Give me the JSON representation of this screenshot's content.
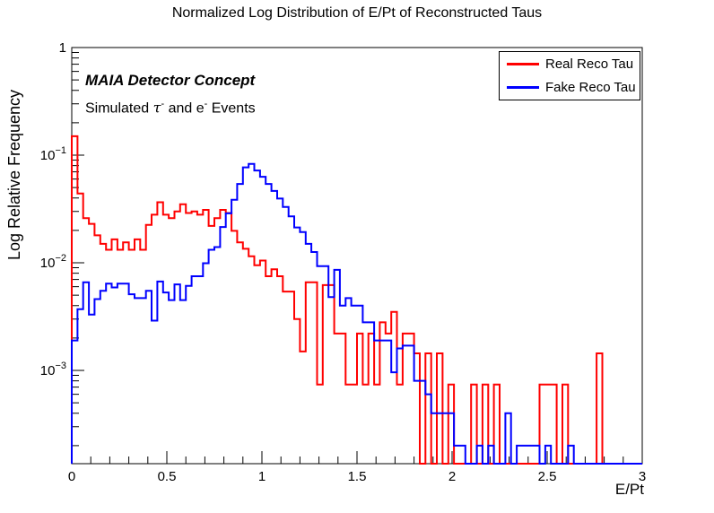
{
  "title": "Normalized Log Distribution of E/Pt of Reconstructed Taus",
  "annotations": {
    "detector": "MAIA Detector Concept",
    "sim_prefix": "Simulated ",
    "tau": "τ",
    "tau_sup": "-",
    "sim_mid": " and e",
    "e_sup": "-",
    "sim_suffix": " Events"
  },
  "legend": {
    "entries": [
      {
        "label": "Real Reco Tau",
        "color": "#ff0000"
      },
      {
        "label": "Fake Reco Tau",
        "color": "#0000ff"
      }
    ]
  },
  "chart_data": {
    "type": "step-histogram",
    "title": "Normalized Log Distribution of E/Pt of Reconstructed Taus",
    "xlabel": "E/Pt",
    "ylabel": "Log Relative Frequency",
    "xlim": [
      0,
      3
    ],
    "ylog": true,
    "ylim": [
      0.000136,
      1.0
    ],
    "bin_start": 0,
    "bin_width": 0.03,
    "n_bins": 100,
    "x_major_ticks": [
      0,
      0.5,
      1,
      1.5,
      2,
      2.5,
      3
    ],
    "x_major_labels": [
      "0",
      "0.5",
      "1",
      "1.5",
      "2",
      "2.5",
      "3"
    ],
    "x_minor_step": 0.1,
    "y_major_ticks": [
      1,
      0.1,
      0.01,
      0.001
    ],
    "y_major_labels": [
      {
        "base": "1",
        "sup": ""
      },
      {
        "base": "10",
        "sup": "−1"
      },
      {
        "base": "10",
        "sup": "−2"
      },
      {
        "base": "10",
        "sup": "−3"
      }
    ],
    "series": [
      {
        "name": "Real Reco Tau",
        "color": "#ff0000",
        "values": [
          0.15,
          0.044,
          0.026,
          0.023,
          0.018,
          0.015,
          0.0132,
          0.0165,
          0.0132,
          0.0155,
          0.0132,
          0.0165,
          0.0132,
          0.0225,
          0.028,
          0.0365,
          0.028,
          0.026,
          0.03,
          0.035,
          0.029,
          0.03,
          0.028,
          0.031,
          0.022,
          0.026,
          0.031,
          0.029,
          0.0198,
          0.0155,
          0.0135,
          0.0115,
          0.0095,
          0.0105,
          0.0075,
          0.0087,
          0.0075,
          0.0054,
          0.0054,
          0.003,
          0.0015,
          0.0066,
          0.0066,
          0.00074,
          0.0062,
          0.0062,
          0.0022,
          0.0022,
          0.00074,
          0.00074,
          0.0022,
          0.00074,
          0.0022,
          0.00074,
          0.0028,
          0.0022,
          0.0035,
          0.00074,
          0.0022,
          0.0022,
          0.00144,
          0,
          0.00144,
          0,
          0.00144,
          0,
          0.00074,
          0,
          0,
          0,
          0.00074,
          0,
          0.00074,
          0,
          0.00074,
          0,
          0,
          0,
          0,
          0,
          0,
          0,
          0.00074,
          0.00074,
          0.00074,
          0,
          0.00074,
          0,
          0,
          0,
          0,
          0,
          0.00144,
          0,
          0,
          0,
          0,
          0,
          0,
          0
        ]
      },
      {
        "name": "Fake Reco Tau",
        "color": "#0000ff",
        "values": [
          0.0019,
          0.0037,
          0.0066,
          0.0033,
          0.0046,
          0.0055,
          0.0064,
          0.0059,
          0.0064,
          0.0064,
          0.0051,
          0.0047,
          0.0047,
          0.0055,
          0.0029,
          0.0067,
          0.0053,
          0.0045,
          0.0063,
          0.0045,
          0.0061,
          0.0075,
          0.0075,
          0.0099,
          0.0132,
          0.014,
          0.0215,
          0.0288,
          0.0385,
          0.054,
          0.077,
          0.083,
          0.072,
          0.063,
          0.054,
          0.0465,
          0.0395,
          0.033,
          0.027,
          0.0213,
          0.0193,
          0.015,
          0.0126,
          0.0093,
          0.0093,
          0.0048,
          0.0086,
          0.004,
          0.0047,
          0.004,
          0.004,
          0.0028,
          0.0028,
          0.0019,
          0.0019,
          0.0019,
          0.00096,
          0.0016,
          0.0017,
          0.0017,
          0.0008,
          0.0008,
          0.0006,
          0.0004,
          0.0004,
          0.0004,
          0.0004,
          0.0002,
          0.0002,
          0,
          0,
          0.0002,
          0,
          0.0002,
          0,
          0,
          0.0004,
          0,
          0.0002,
          0.0002,
          0.0002,
          0.0002,
          0,
          0.0002,
          0,
          0,
          0,
          0.0002,
          0,
          0,
          0,
          0,
          0,
          0,
          0,
          0,
          0,
          0,
          0,
          0
        ]
      }
    ],
    "legend_position": "top-right",
    "grid": false
  }
}
